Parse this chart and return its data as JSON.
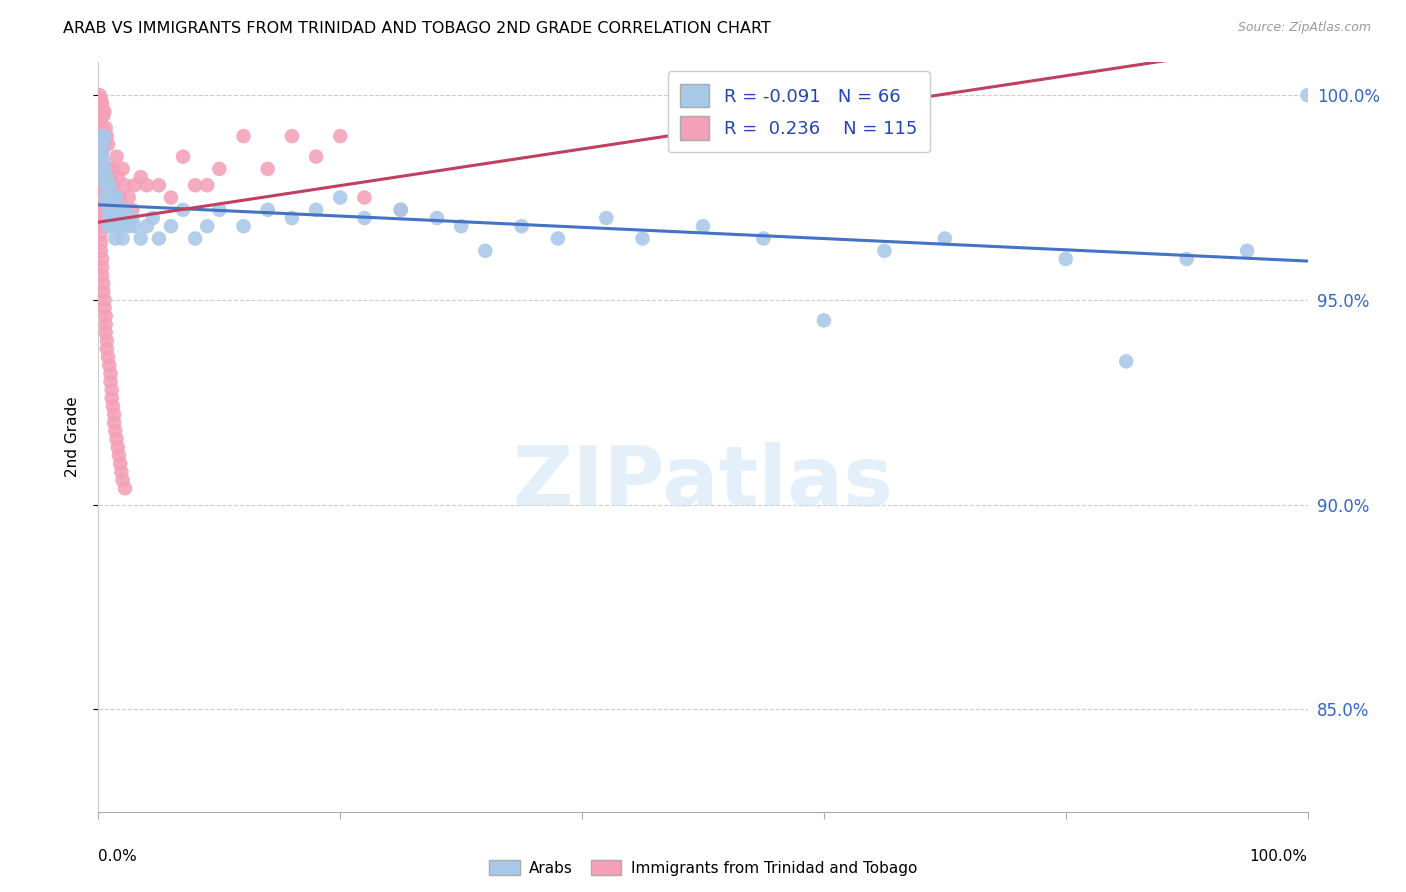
{
  "title": "ARAB VS IMMIGRANTS FROM TRINIDAD AND TOBAGO 2ND GRADE CORRELATION CHART",
  "source": "Source: ZipAtlas.com",
  "ylabel": "2nd Grade",
  "xlim": [
    0.0,
    1.0
  ],
  "ylim": [
    0.825,
    1.008
  ],
  "yticks": [
    0.85,
    0.9,
    0.95,
    1.0
  ],
  "ytick_labels": [
    "85.0%",
    "90.0%",
    "95.0%",
    "100.0%"
  ],
  "legend_r_arab": "-0.091",
  "legend_n_arab": "66",
  "legend_r_tnt": "0.236",
  "legend_n_tnt": "115",
  "color_arab": "#a8c8e8",
  "color_arab_line": "#4472c4",
  "color_tnt": "#f4a0b8",
  "color_tnt_line": "#c04060",
  "arab_x": [
    0.002,
    0.003,
    0.003,
    0.004,
    0.004,
    0.005,
    0.005,
    0.006,
    0.006,
    0.007,
    0.007,
    0.008,
    0.008,
    0.009,
    0.009,
    0.01,
    0.01,
    0.011,
    0.012,
    0.013,
    0.014,
    0.015,
    0.016,
    0.018,
    0.02,
    0.022,
    0.025,
    0.028,
    0.03,
    0.035,
    0.04,
    0.045,
    0.05,
    0.06,
    0.07,
    0.08,
    0.09,
    0.1,
    0.12,
    0.14,
    0.16,
    0.18,
    0.2,
    0.22,
    0.25,
    0.28,
    0.3,
    0.32,
    0.35,
    0.38,
    0.42,
    0.45,
    0.5,
    0.55,
    0.6,
    0.65,
    0.7,
    0.8,
    0.85,
    0.9,
    0.95,
    1.0,
    0.01,
    0.012,
    0.015,
    0.02
  ],
  "arab_y": [
    0.99,
    0.988,
    0.986,
    0.984,
    0.98,
    0.99,
    0.982,
    0.978,
    0.975,
    0.98,
    0.975,
    0.972,
    0.968,
    0.978,
    0.97,
    0.976,
    0.968,
    0.972,
    0.975,
    0.97,
    0.965,
    0.972,
    0.968,
    0.97,
    0.968,
    0.972,
    0.968,
    0.97,
    0.968,
    0.965,
    0.968,
    0.97,
    0.965,
    0.968,
    0.972,
    0.965,
    0.968,
    0.972,
    0.968,
    0.972,
    0.97,
    0.972,
    0.975,
    0.97,
    0.972,
    0.97,
    0.968,
    0.962,
    0.968,
    0.965,
    0.97,
    0.965,
    0.968,
    0.965,
    0.945,
    0.962,
    0.965,
    0.96,
    0.935,
    0.96,
    0.962,
    1.0,
    0.975,
    0.97,
    0.975,
    0.965
  ],
  "tnt_x": [
    0.001,
    0.001,
    0.001,
    0.001,
    0.001,
    0.001,
    0.001,
    0.001,
    0.001,
    0.001,
    0.001,
    0.001,
    0.001,
    0.001,
    0.001,
    0.001,
    0.001,
    0.001,
    0.001,
    0.001,
    0.001,
    0.001,
    0.001,
    0.001,
    0.001,
    0.001,
    0.001,
    0.001,
    0.001,
    0.001,
    0.002,
    0.002,
    0.002,
    0.002,
    0.002,
    0.003,
    0.003,
    0.003,
    0.003,
    0.004,
    0.004,
    0.004,
    0.005,
    0.005,
    0.005,
    0.006,
    0.006,
    0.007,
    0.007,
    0.008,
    0.008,
    0.009,
    0.01,
    0.011,
    0.012,
    0.013,
    0.014,
    0.015,
    0.016,
    0.018,
    0.02,
    0.022,
    0.025,
    0.028,
    0.03,
    0.035,
    0.04,
    0.05,
    0.06,
    0.07,
    0.08,
    0.09,
    0.1,
    0.12,
    0.14,
    0.16,
    0.18,
    0.2,
    0.22,
    0.25,
    0.001,
    0.001,
    0.001,
    0.002,
    0.002,
    0.002,
    0.003,
    0.003,
    0.003,
    0.004,
    0.004,
    0.005,
    0.005,
    0.006,
    0.006,
    0.006,
    0.007,
    0.007,
    0.008,
    0.009,
    0.01,
    0.01,
    0.011,
    0.011,
    0.012,
    0.013,
    0.013,
    0.014,
    0.015,
    0.016,
    0.017,
    0.018,
    0.019,
    0.02,
    0.022
  ],
  "tnt_y": [
    1.0,
    0.999,
    0.998,
    0.997,
    0.996,
    0.995,
    0.994,
    0.993,
    0.992,
    0.991,
    0.99,
    0.989,
    0.988,
    0.987,
    0.986,
    0.985,
    0.984,
    0.983,
    0.982,
    0.981,
    0.98,
    0.979,
    0.978,
    0.977,
    0.976,
    0.975,
    0.974,
    0.973,
    0.972,
    0.971,
    0.999,
    0.995,
    0.99,
    0.985,
    0.98,
    0.998,
    0.992,
    0.986,
    0.978,
    0.995,
    0.988,
    0.978,
    0.996,
    0.988,
    0.978,
    0.992,
    0.98,
    0.99,
    0.98,
    0.988,
    0.978,
    0.982,
    0.98,
    0.978,
    0.982,
    0.978,
    0.975,
    0.985,
    0.98,
    0.975,
    0.982,
    0.978,
    0.975,
    0.972,
    0.978,
    0.98,
    0.978,
    0.978,
    0.975,
    0.985,
    0.978,
    0.978,
    0.982,
    0.99,
    0.982,
    0.99,
    0.985,
    0.99,
    0.975,
    0.972,
    0.97,
    0.969,
    0.968,
    0.966,
    0.964,
    0.962,
    0.96,
    0.958,
    0.956,
    0.954,
    0.952,
    0.95,
    0.948,
    0.946,
    0.944,
    0.942,
    0.94,
    0.938,
    0.936,
    0.934,
    0.932,
    0.93,
    0.928,
    0.926,
    0.924,
    0.922,
    0.92,
    0.918,
    0.916,
    0.914,
    0.912,
    0.91,
    0.908,
    0.906,
    0.904
  ]
}
